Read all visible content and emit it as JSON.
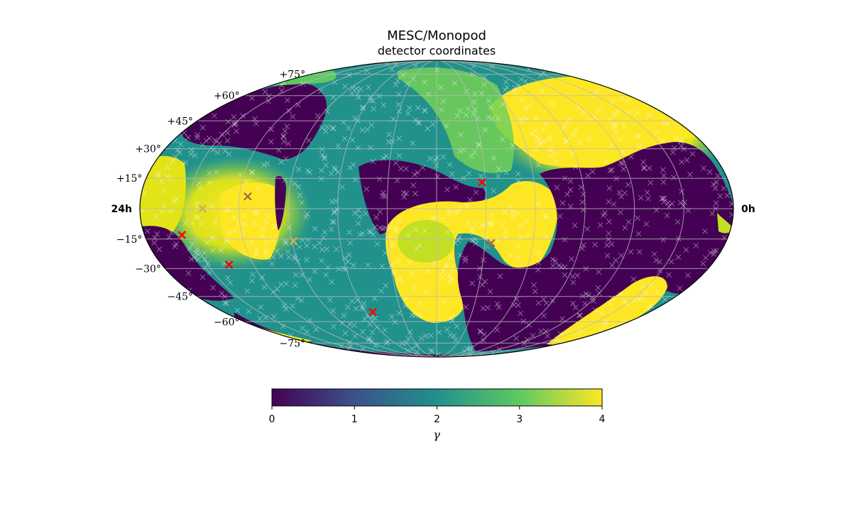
{
  "chart_data": {
    "type": "heatmap",
    "projection": "mollweide",
    "title": "MESC/Monopod",
    "subtitle": "detector coordinates",
    "ra_labels": {
      "left": "24h",
      "right": "0h"
    },
    "dec_ticks": [
      {
        "dec": 75,
        "label": "+75°"
      },
      {
        "dec": 60,
        "label": "+60°"
      },
      {
        "dec": 45,
        "label": "+45°"
      },
      {
        "dec": 30,
        "label": "+30°"
      },
      {
        "dec": 15,
        "label": "+15°"
      },
      {
        "dec": -15,
        "label": "−15°"
      },
      {
        "dec": -30,
        "label": "−30°"
      },
      {
        "dec": -45,
        "label": "−45°"
      },
      {
        "dec": -60,
        "label": "−60°"
      },
      {
        "dec": -75,
        "label": "−75°"
      }
    ],
    "grid": true,
    "colormap": "viridis",
    "colorbar": {
      "label": "γ",
      "range": [
        0,
        4
      ],
      "ticks": [
        "0",
        "1",
        "2",
        "3",
        "4"
      ],
      "stops": [
        "#440154",
        "#3b528b",
        "#21918c",
        "#5ec962",
        "#fde725"
      ]
    },
    "regions": [
      {
        "name": "upper-left dark",
        "value": 0.0
      },
      {
        "name": "central-north dark lobe",
        "value": 0.0
      },
      {
        "name": "east dark region",
        "value": 0.0
      },
      {
        "name": "south-central dark",
        "value": 0.0
      },
      {
        "name": "south-west dark",
        "value": 0.0
      },
      {
        "name": "north-east bright",
        "value": 4.0
      },
      {
        "name": "west bright",
        "value": 3.8
      },
      {
        "name": "central hook bright",
        "value": 4.0
      },
      {
        "name": "south-east bright lobe",
        "value": 4.0
      },
      {
        "name": "background",
        "value": 2.2
      }
    ],
    "markers": [
      {
        "lon": -28,
        "lat": 13,
        "color": "#ff0000"
      },
      {
        "lon": -34,
        "lat": -17,
        "color": "#a86b3f"
      },
      {
        "lon": 157,
        "lat": -13,
        "color": "#ff0000"
      },
      {
        "lon": 136,
        "lat": -28,
        "color": "#ff0000"
      },
      {
        "lon": 89,
        "lat": -16,
        "color": "#c9b05a"
      },
      {
        "lon": 115,
        "lat": 6,
        "color": "#a86b3f"
      },
      {
        "lon": 142,
        "lat": 0,
        "color": "#c9b05a"
      },
      {
        "lon": 54,
        "lat": -54,
        "color": "#ff0000"
      }
    ]
  }
}
